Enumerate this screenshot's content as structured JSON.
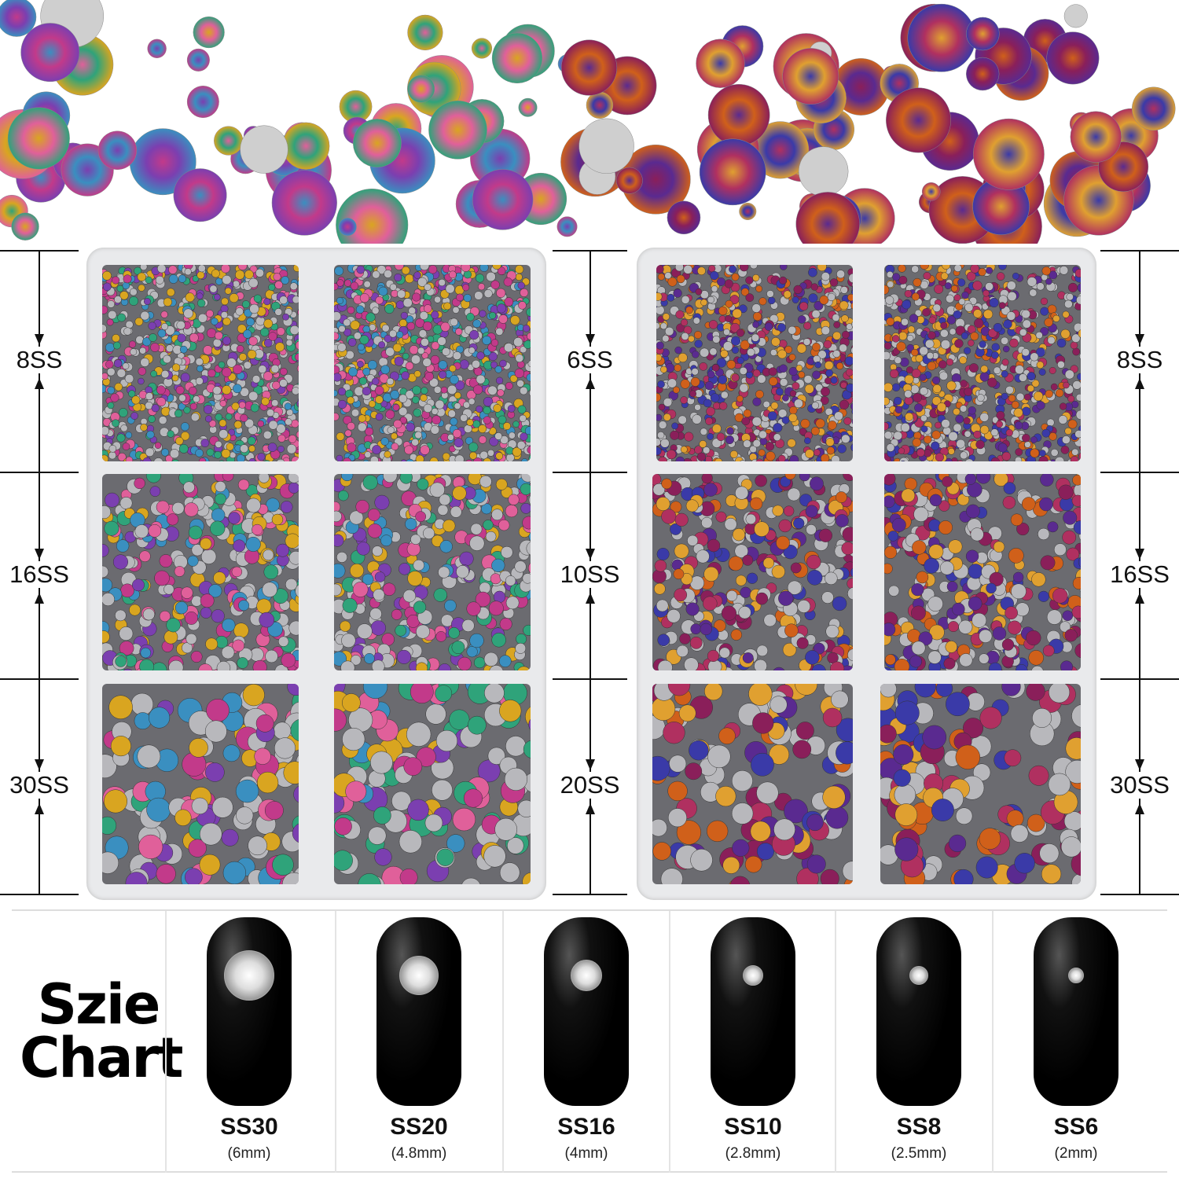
{
  "dimension_labels": {
    "left": [
      "8SS",
      "16SS",
      "30SS"
    ],
    "middle": [
      "6SS",
      "10SS",
      "20SS"
    ],
    "right": [
      "8SS",
      "16SS",
      "30SS"
    ]
  },
  "size_chart": {
    "title_line1": "Szie",
    "title_line2": "Chart",
    "sizes": [
      {
        "label": "SS30",
        "mm": "(6mm)"
      },
      {
        "label": "SS20",
        "mm": "(4.8mm)"
      },
      {
        "label": "SS16",
        "mm": "(4mm)"
      },
      {
        "label": "SS10",
        "mm": "(2.8mm)"
      },
      {
        "label": "SS8",
        "mm": "(2.5mm)"
      },
      {
        "label": "SS6",
        "mm": "(2mm)"
      }
    ]
  },
  "colors": {
    "left_palette": [
      "#c23a8a",
      "#2fa37a",
      "#7b3fb0",
      "#d9a520",
      "#3a8fc0",
      "#e0609a"
    ],
    "right_palette": [
      "#d0601a",
      "#3a3aa8",
      "#8a1f5a",
      "#e0a030",
      "#5a2a90",
      "#b03060"
    ]
  }
}
